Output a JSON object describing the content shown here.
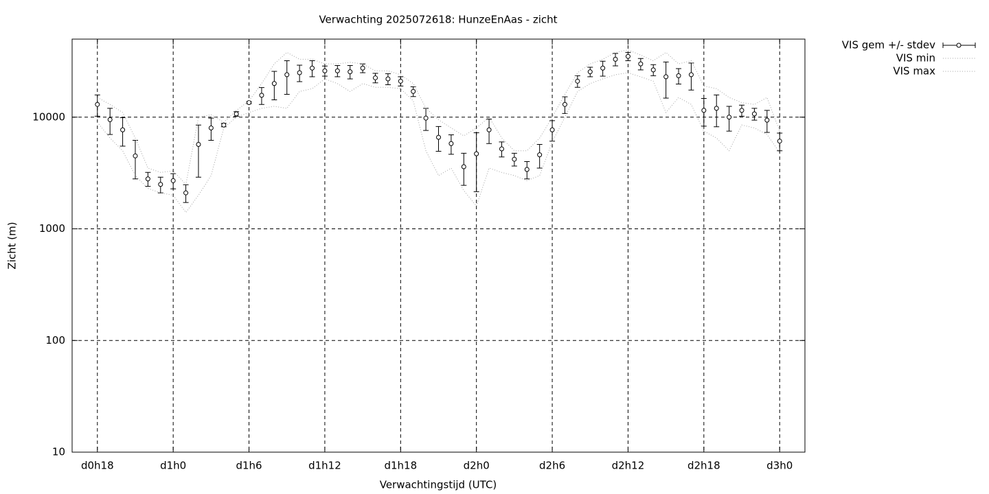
{
  "chart_data": {
    "type": "errorbar",
    "title": "Verwachting 2025072618: HunzeEnAas - zicht",
    "xlabel": "Verwachtingstijd (UTC)",
    "ylabel": "Zicht (m)",
    "log_y": true,
    "grid": true,
    "legend": "outside-right-top",
    "xlim": [
      16,
      74
    ],
    "ylim": [
      10,
      50000
    ],
    "xticks": [
      {
        "value": 18,
        "label": "d0h18"
      },
      {
        "value": 24,
        "label": "d1h0"
      },
      {
        "value": 30,
        "label": "d1h6"
      },
      {
        "value": 36,
        "label": "d1h12"
      },
      {
        "value": 42,
        "label": "d1h18"
      },
      {
        "value": 48,
        "label": "d2h0"
      },
      {
        "value": 54,
        "label": "d2h6"
      },
      {
        "value": 60,
        "label": "d2h12"
      },
      {
        "value": 66,
        "label": "d2h18"
      },
      {
        "value": 72,
        "label": "d3h0"
      }
    ],
    "yticks": [
      10,
      100,
      1000,
      10000
    ],
    "x": [
      18,
      19,
      20,
      21,
      22,
      23,
      24,
      25,
      26,
      27,
      28,
      29,
      30,
      31,
      32,
      33,
      34,
      35,
      36,
      37,
      38,
      39,
      40,
      41,
      42,
      43,
      44,
      45,
      46,
      47,
      48,
      49,
      50,
      51,
      52,
      53,
      54,
      55,
      56,
      57,
      58,
      59,
      60,
      61,
      62,
      63,
      64,
      65,
      66,
      67,
      68,
      69,
      70,
      71,
      72
    ],
    "series": [
      {
        "name": "VIS gem +/- stdev",
        "color": "#000000",
        "style": "errorbars",
        "values": [
          13000,
          9500,
          7700,
          4500,
          2800,
          2500,
          2700,
          2100,
          5700,
          8000,
          8500,
          10700,
          13500,
          15700,
          20000,
          24000,
          25000,
          27500,
          26000,
          26000,
          25500,
          27500,
          22500,
          22000,
          21000,
          17000,
          9800,
          6600,
          5800,
          3600,
          4700,
          7700,
          5200,
          4200,
          3400,
          4600,
          7700,
          13000,
          21000,
          25500,
          27500,
          33000,
          35000,
          30000,
          26500,
          23000,
          23500,
          24000,
          11500,
          12000,
          10000,
          11500,
          10700,
          9400,
          6100
        ],
        "errors": [
          2800,
          2500,
          2200,
          1700,
          400,
          400,
          420,
          380,
          2800,
          1800,
          300,
          500,
          300,
          2700,
          5700,
          8000,
          4200,
          4500,
          2700,
          3000,
          3500,
          2500,
          2200,
          2500,
          2000,
          1700,
          2200,
          1650,
          1150,
          1150,
          2550,
          1900,
          800,
          550,
          600,
          1100,
          1600,
          2200,
          2500,
          2500,
          4200,
          4200,
          3000,
          3500,
          3000,
          8200,
          3700,
          6500,
          3200,
          3800,
          2500,
          1300,
          1300,
          2100,
          1100
        ]
      },
      {
        "name": "VIS min",
        "color": "#a0a0a0",
        "style": "dotted",
        "values": [
          9000,
          6500,
          5000,
          3000,
          2300,
          2100,
          2000,
          1400,
          2000,
          3000,
          8000,
          10000,
          11000,
          12000,
          12500,
          12000,
          17000,
          18000,
          22000,
          20000,
          17000,
          20000,
          18500,
          18500,
          18000,
          14000,
          5000,
          3000,
          3500,
          2200,
          1600,
          3500,
          3200,
          3000,
          2700,
          3000,
          6000,
          10000,
          17000,
          20000,
          22000,
          24000,
          25000,
          23000,
          21000,
          11000,
          15000,
          13000,
          7500,
          6500,
          5000,
          8500,
          8000,
          7000,
          4800
        ]
      },
      {
        "name": "VIS max",
        "color": "#a0a0a0",
        "style": "dotted",
        "values": [
          15000,
          13000,
          11000,
          6500,
          3500,
          3200,
          3300,
          2500,
          10000,
          10500,
          9000,
          11500,
          14000,
          20000,
          30000,
          38000,
          33000,
          33000,
          30000,
          30000,
          31000,
          30000,
          26000,
          26000,
          24000,
          20000,
          12000,
          9500,
          8000,
          6800,
          8000,
          10000,
          6500,
          5000,
          5000,
          6500,
          10000,
          16000,
          25000,
          30000,
          33000,
          38000,
          40000,
          36000,
          32000,
          38000,
          30000,
          32000,
          19000,
          18000,
          15000,
          13500,
          13000,
          15000,
          7500
        ]
      }
    ]
  }
}
